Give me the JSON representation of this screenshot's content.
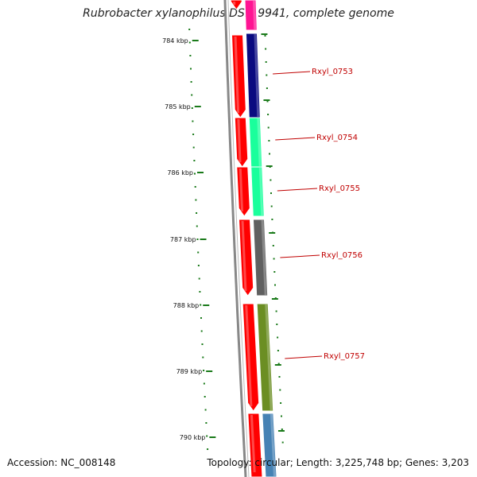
{
  "title": "Rubrobacter xylanophilus DSM 9941, complete genome",
  "accession": "Accession: NC_008148",
  "topology": "Topology: circular; Length: 3,225,748 bp; Genes: 3,203",
  "colors": {
    "backbone": "#888888",
    "tick": "#1a7a1a",
    "cds_strand": "#ff0000",
    "label": "#c00000"
  },
  "ticks": [
    {
      "label": "784 kbp"
    },
    {
      "label": "785 kbp"
    },
    {
      "label": "786 kbp"
    },
    {
      "label": "787 kbp"
    },
    {
      "label": "788 kbp"
    },
    {
      "label": "789 kbp"
    },
    {
      "label": "790 kbp"
    }
  ],
  "genes": [
    {
      "label": "",
      "color": "#ff1493"
    },
    {
      "label": "Rxyl_0753",
      "color": "#0a0a80"
    },
    {
      "label": "Rxyl_0754",
      "color": "#1aff9c"
    },
    {
      "label": "Rxyl_0755",
      "color": "#1aff9c"
    },
    {
      "label": "Rxyl_0756",
      "color": "#606060"
    },
    {
      "label": "Rxyl_0757",
      "color": "#6b8e23"
    },
    {
      "label": "",
      "color": "#4682b4"
    }
  ]
}
